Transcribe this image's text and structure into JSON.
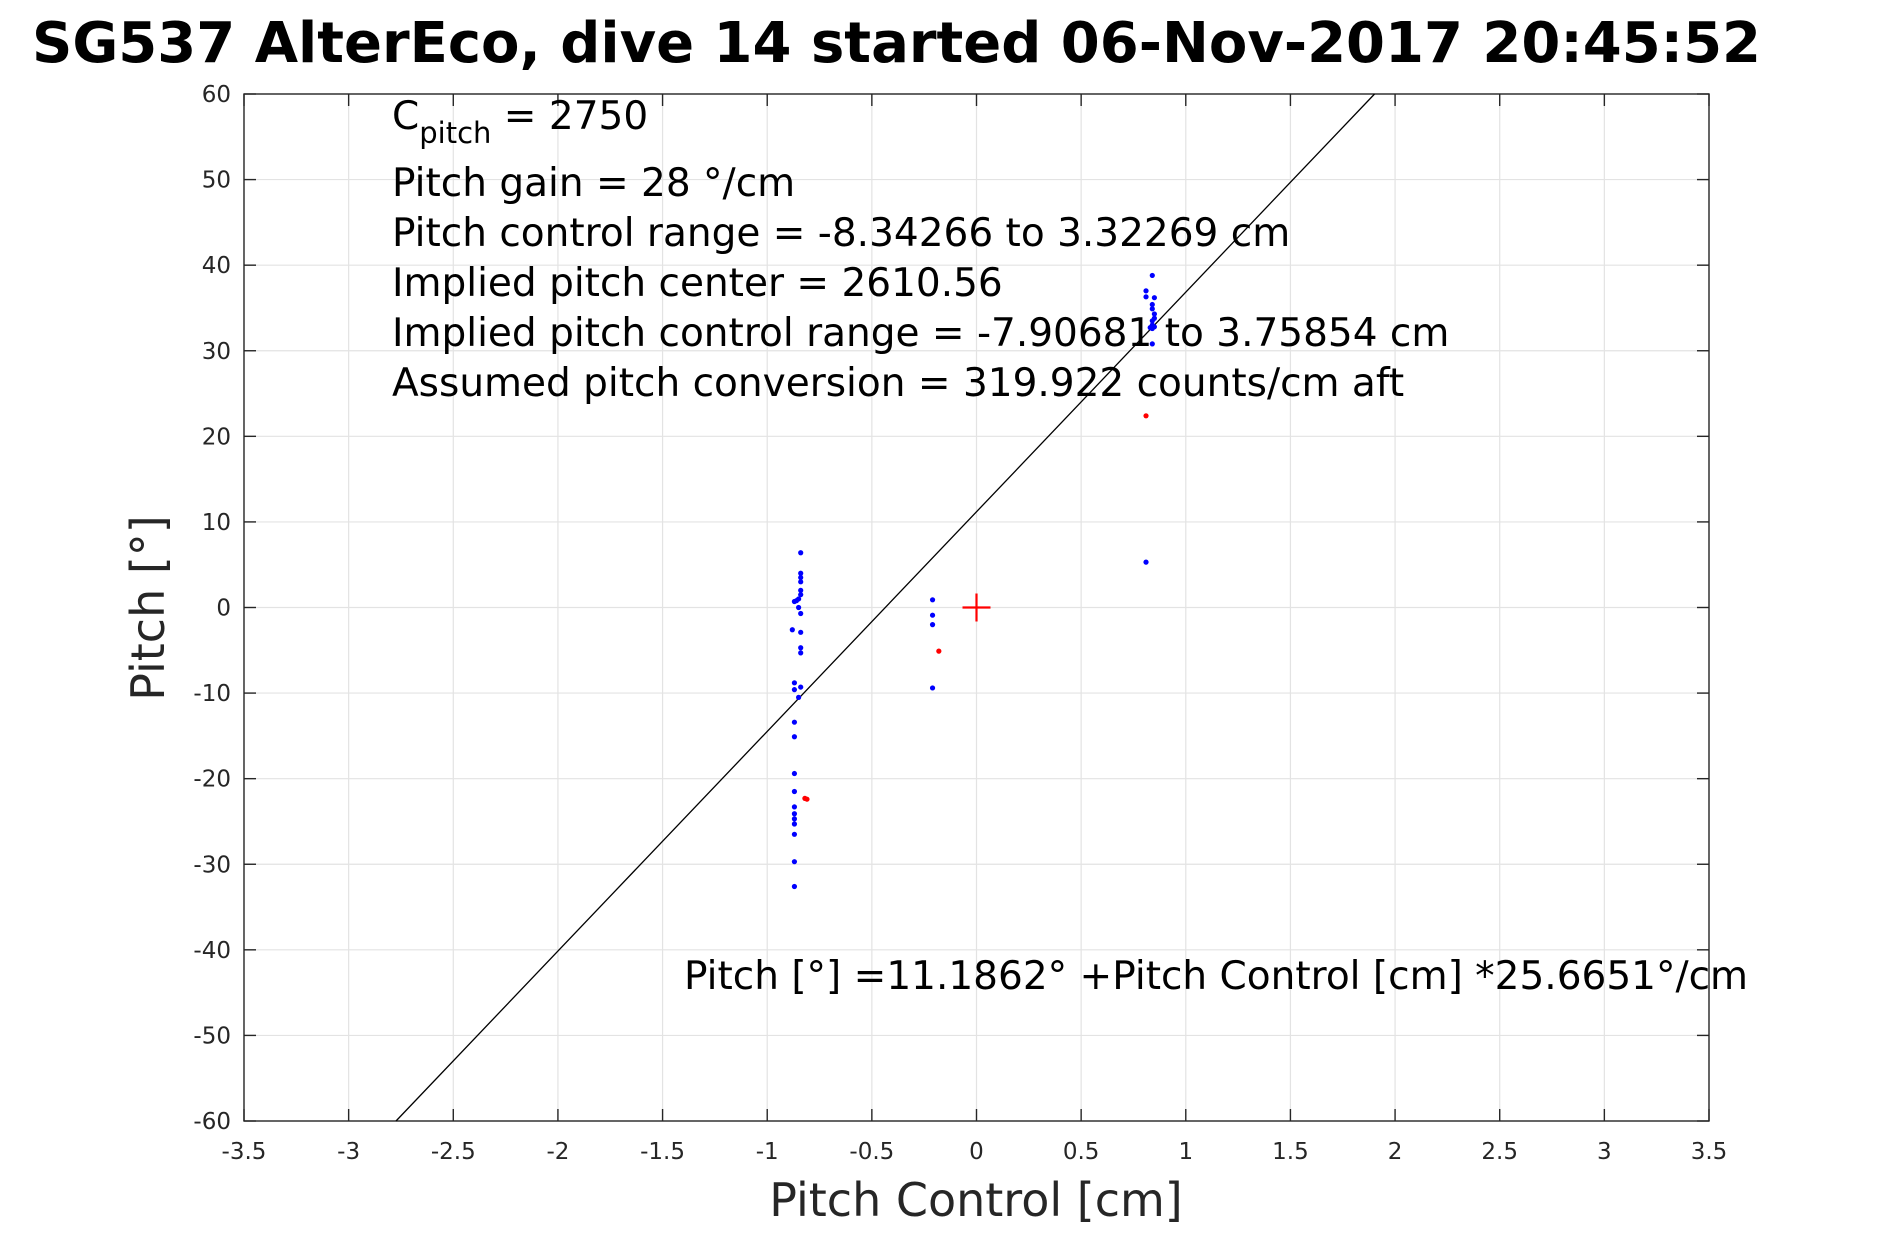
{
  "title": "SG537 AlterEco, dive 14 started 06-Nov-2017 20:45:52",
  "chart_data": {
    "type": "scatter",
    "title": "SG537 AlterEco, dive 14 started 06-Nov-2017 20:45:52",
    "xlabel": "Pitch Control [cm]",
    "ylabel": "Pitch [°]",
    "xlim": [
      -3.5,
      3.5
    ],
    "ylim": [
      -60,
      60
    ],
    "grid": true,
    "x_ticks": [
      -3.5,
      -3,
      -2.5,
      -2,
      -1.5,
      -1,
      -0.5,
      0,
      0.5,
      1,
      1.5,
      2,
      2.5,
      3,
      3.5
    ],
    "x_tick_labels": [
      "-3.5",
      "-3",
      "-2.5",
      "-2",
      "-1.5",
      "-1",
      "-0.5",
      "0",
      "0.5",
      "1",
      "1.5",
      "2",
      "2.5",
      "3",
      "3.5"
    ],
    "y_ticks": [
      -60,
      -50,
      -40,
      -30,
      -20,
      -10,
      0,
      10,
      20,
      30,
      40,
      50,
      60
    ],
    "y_tick_labels": [
      "-60",
      "-50",
      "-40",
      "-30",
      "-20",
      "-10",
      "0",
      "10",
      "20",
      "30",
      "40",
      "50",
      "60"
    ],
    "colors": {
      "blue_points": "#0000ff",
      "red_points": "#ff0000",
      "fit_line": "#000000",
      "center_marker": "#ff0000"
    },
    "fit_line": {
      "intercept": 11.1862,
      "slope": 25.6651
    },
    "center_marker": {
      "x": 0,
      "y": 0,
      "symbol": "+"
    },
    "series": [
      {
        "color": "blue",
        "points": [
          [
            -0.84,
            6.4
          ],
          [
            -0.84,
            4.0
          ],
          [
            -0.84,
            3.5
          ],
          [
            -0.84,
            3.0
          ],
          [
            -0.84,
            2.0
          ],
          [
            -0.84,
            1.5
          ],
          [
            -0.85,
            1.0
          ],
          [
            -0.86,
            0.8
          ],
          [
            -0.87,
            0.7
          ],
          [
            -0.85,
            0.0
          ],
          [
            -0.84,
            -0.7
          ],
          [
            -0.88,
            -2.6
          ],
          [
            -0.84,
            -2.9
          ],
          [
            -0.84,
            -4.7
          ],
          [
            -0.84,
            -5.3
          ],
          [
            -0.87,
            -8.8
          ],
          [
            -0.87,
            -9.6
          ],
          [
            -0.84,
            -9.3
          ],
          [
            -0.85,
            -10.5
          ],
          [
            -0.87,
            -13.4
          ],
          [
            -0.87,
            -15.1
          ],
          [
            -0.87,
            -19.4
          ],
          [
            -0.87,
            -21.5
          ],
          [
            -0.87,
            -23.3
          ],
          [
            -0.87,
            -24.1
          ],
          [
            -0.87,
            -24.7
          ],
          [
            -0.87,
            -25.3
          ],
          [
            -0.87,
            -26.5
          ],
          [
            -0.87,
            -29.7
          ],
          [
            -0.87,
            -32.6
          ],
          [
            -0.21,
            0.9
          ],
          [
            -0.21,
            -0.9
          ],
          [
            -0.21,
            -2.0
          ],
          [
            -0.21,
            -9.4
          ],
          [
            0.81,
            37.0
          ],
          [
            0.81,
            36.3
          ],
          [
            0.84,
            38.8
          ],
          [
            0.85,
            36.2
          ],
          [
            0.84,
            35.4
          ],
          [
            0.84,
            34.9
          ],
          [
            0.85,
            34.3
          ],
          [
            0.84,
            33.5
          ],
          [
            0.84,
            33.0
          ],
          [
            0.85,
            33.8
          ],
          [
            0.84,
            32.6
          ],
          [
            0.85,
            32.8
          ],
          [
            0.83,
            32.7
          ],
          [
            0.84,
            30.8
          ],
          [
            0.81,
            5.3
          ]
        ]
      },
      {
        "color": "red",
        "points": [
          [
            -0.82,
            -22.3
          ],
          [
            -0.81,
            -22.4
          ],
          [
            -0.18,
            -5.1
          ],
          [
            0.81,
            22.4
          ]
        ]
      }
    ],
    "annotations": {
      "c_pitch_main": "C",
      "c_pitch_sub": "pitch",
      "c_pitch_value": " = 2750",
      "lines": [
        "Pitch gain = 28 °/cm",
        "Pitch control range = -8.34266 to 3.32269 cm",
        "Implied pitch center = 2610.56",
        "Implied pitch control range = -7.90681 to 3.75854 cm",
        "Assumed pitch conversion = 319.922 counts/cm aft"
      ],
      "fit_equation": "Pitch [°] =11.1862° +Pitch Control [cm] *25.6651°/cm"
    }
  }
}
